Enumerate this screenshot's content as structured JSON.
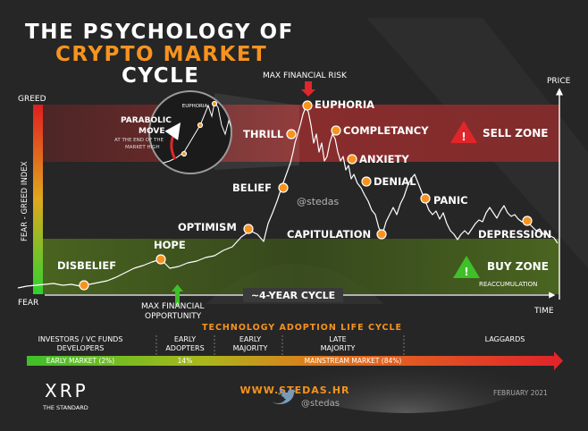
{
  "header": {
    "line1": "THE PSYCHOLOGY OF",
    "line2": "CRYPTO MARKET",
    "line3": "CYCLE"
  },
  "axis": {
    "greed": "GREED",
    "fear": "FEAR",
    "index": "FEAR - GREED INDEX",
    "price": "PRICE",
    "time": "TIME"
  },
  "max_risk": "MAX FINANCIAL RISK",
  "max_opportunity_1": "MAX FINANCIAL",
  "max_opportunity_2": "OPPORTUNITY",
  "stages": {
    "disbelief": "DISBELIEF",
    "hope": "HOPE",
    "optimism": "OPTIMISM",
    "belief": "BELIEF",
    "thrill": "THRILL",
    "euphoria": "EUPHORIA",
    "completancy": "COMPLETANCY",
    "anxiety": "ANXIETY",
    "denial": "DENIAL",
    "panic": "PANIC",
    "capitulation": "CAPITULATION",
    "depression": "DEPRESSION"
  },
  "sell_zone": "SELL ZONE",
  "buy_zone": "BUY ZONE",
  "reaccumulation": "REACCUMULATION",
  "cycle": "~4-YEAR CYCLE",
  "watermark": "@stedas",
  "parabolic": {
    "title1": "PARABOLIC",
    "title2": "MOVE",
    "sub1": "AT THE END OF THE",
    "sub2": "MARKET HIGH",
    "label": "EUPHORIA"
  },
  "adoption": {
    "title": "TECHNOLOGY ADOPTION LIFE CYCLE",
    "groups": [
      {
        "line1": "INVESTORS / VC FUNDS",
        "line2": "DEVELOPERS"
      },
      {
        "line1": "EARLY",
        "line2": "ADOPTERS"
      },
      {
        "line1": "EARLY",
        "line2": "MAJORITY"
      },
      {
        "line1": "LATE",
        "line2": "MAJORITY"
      },
      {
        "line1": "LAGGARDS",
        "line2": ""
      }
    ],
    "bar": {
      "early_market": "EARLY MARKET (2%)",
      "early_adopters": "14%",
      "mainstream": "MAINSTREAM MARKET (84%)"
    }
  },
  "footer": {
    "brand": "XRP",
    "brand_sub": "THE STANDARD",
    "site": "WWW.STEDAS.HR",
    "handle": "@stedas",
    "date": "FEBRUARY 2021"
  },
  "colors": {
    "background": "#262626",
    "accent_orange": "#f7931e",
    "sell_zone": "#8a2c2c",
    "buy_zone": "#4e6b1f",
    "warning_red": "#e0262a",
    "warning_green": "#3fbf2a"
  },
  "icons": [
    "down-arrow-icon",
    "up-arrow-icon",
    "warning-red-icon",
    "warning-green-icon",
    "twitter-icon"
  ]
}
